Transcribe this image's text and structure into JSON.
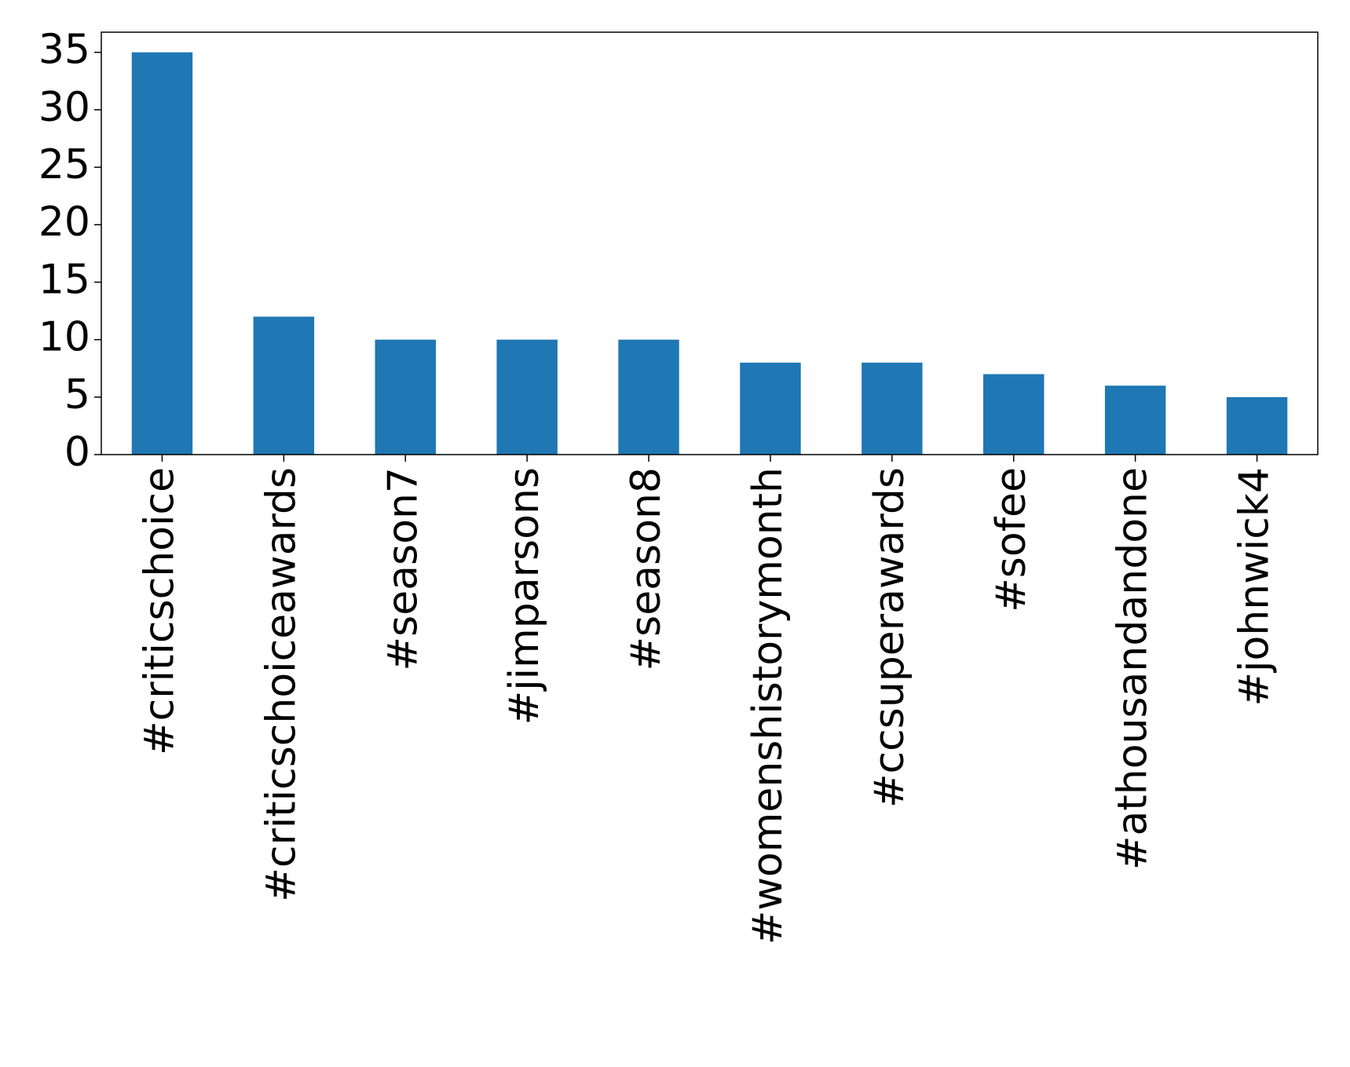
{
  "chart_data": {
    "type": "bar",
    "categories": [
      "#criticschoice",
      "#criticschoiceawards",
      "#season7",
      "#jimparsons",
      "#season8",
      "#womenshistorymonth",
      "#ccsuperawards",
      "#sofee",
      "#athousandandone",
      "#johnwick4"
    ],
    "values": [
      35,
      12,
      10,
      10,
      10,
      8,
      8,
      7,
      6,
      5
    ],
    "color": "#1f77b4",
    "ylim": [
      0,
      36.75
    ],
    "yticks": [
      0,
      5,
      10,
      15,
      20,
      25,
      30,
      35
    ],
    "grid": false
  }
}
